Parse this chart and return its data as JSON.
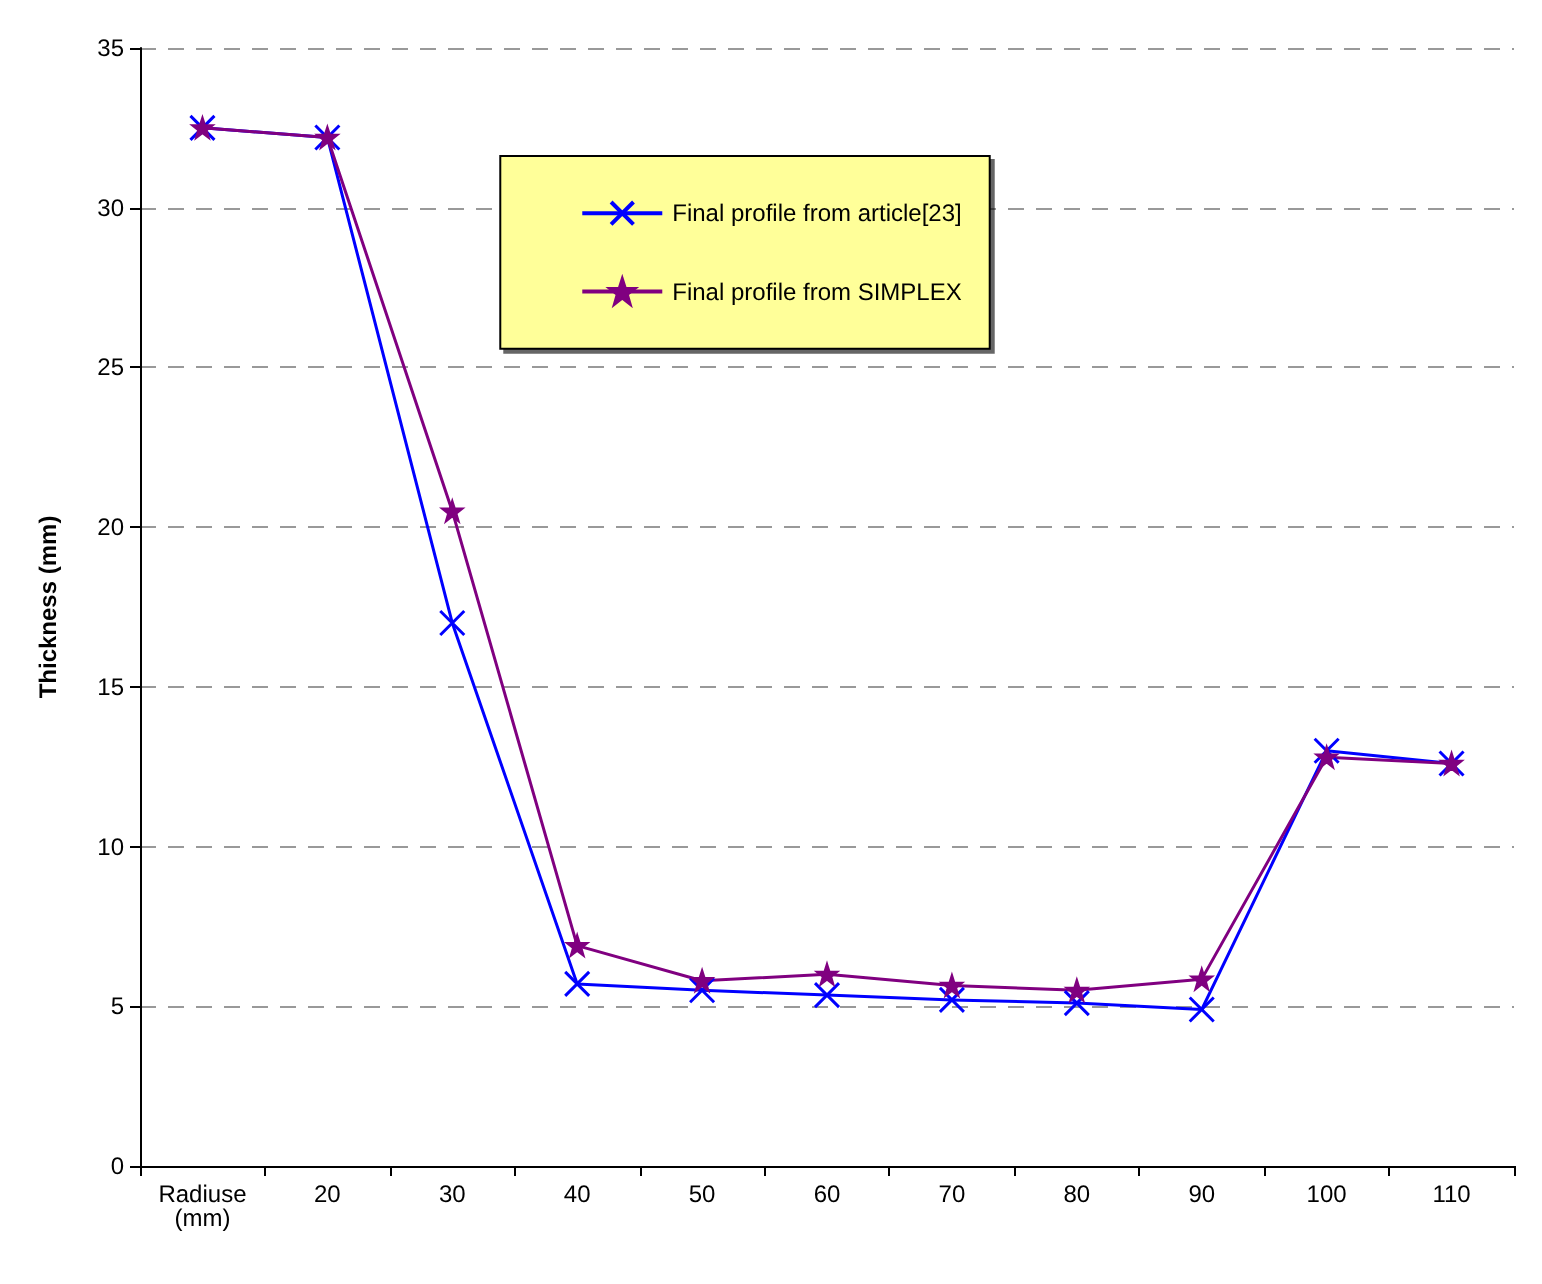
{
  "chart_data": {
    "type": "line",
    "ylabel": "Thickness (mm)",
    "categories": [
      "Radiuse (mm)",
      "20",
      "30",
      "40",
      "50",
      "60",
      "70",
      "80",
      "90",
      "100",
      "110"
    ],
    "series": [
      {
        "name": "Final profile from article[23]",
        "color": "#0000ff",
        "marker": "cross",
        "values": [
          32.5,
          32.2,
          17,
          5.7,
          5.5,
          5.35,
          5.2,
          5.1,
          4.9,
          13.0,
          12.6
        ]
      },
      {
        "name": "Final profile from SIMPLEX",
        "color": "#800080",
        "marker": "star",
        "values": [
          32.5,
          32.2,
          20.5,
          6.9,
          5.8,
          6.0,
          5.65,
          5.5,
          5.85,
          12.8,
          12.6
        ]
      }
    ],
    "ylim": [
      0,
      35
    ],
    "yticks": [
      0,
      5,
      10,
      15,
      20,
      25,
      30,
      35
    ],
    "grid": "y",
    "legend": "top",
    "line_style": "solid"
  }
}
